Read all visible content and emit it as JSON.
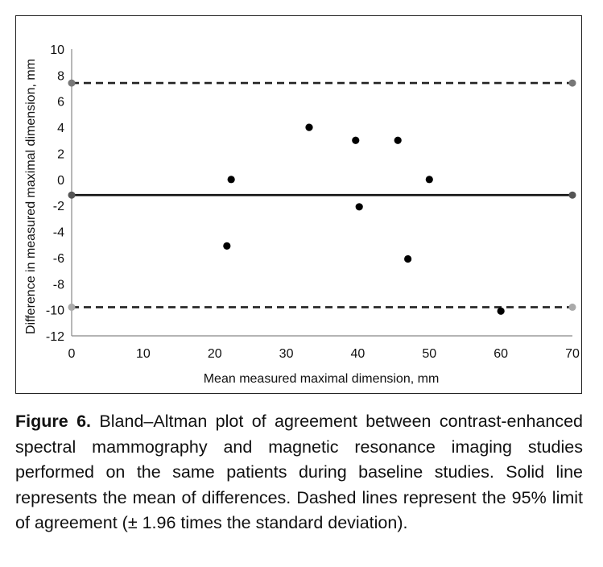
{
  "chart_data": {
    "type": "scatter",
    "title": "",
    "xlabel": "Mean measured maximal dimension, mm",
    "ylabel": "Difference in measured maximal dimension, mm",
    "xlim": [
      0,
      70
    ],
    "ylim": [
      -12,
      10
    ],
    "x_ticks": [
      0,
      10,
      20,
      30,
      40,
      50,
      60,
      70
    ],
    "y_ticks": [
      10,
      8,
      6,
      4,
      2,
      0,
      -2,
      -4,
      -6,
      -8,
      -10,
      -12
    ],
    "grid": false,
    "legend": "none",
    "series": [
      {
        "points": [
          {
            "x": 21.7,
            "y": -5.1
          },
          {
            "x": 22.3,
            "y": 0.0
          },
          {
            "x": 33.2,
            "y": 4.0
          },
          {
            "x": 39.7,
            "y": 3.0
          },
          {
            "x": 40.2,
            "y": -2.1
          },
          {
            "x": 45.6,
            "y": 3.0
          },
          {
            "x": 47.0,
            "y": -6.1
          },
          {
            "x": 50.0,
            "y": 0.0
          },
          {
            "x": 60.0,
            "y": -10.1
          }
        ],
        "color": "#000000"
      }
    ],
    "reference_lines": [
      {
        "kind": "mean",
        "style": "solid",
        "y": -1.2,
        "color": "#111111",
        "endpoint_color": "#555555"
      },
      {
        "kind": "upper-limit",
        "style": "dashed",
        "y": 7.4,
        "color": "#222222",
        "endpoint_color": "#777777"
      },
      {
        "kind": "lower-limit",
        "style": "dashed",
        "y": -9.8,
        "color": "#222222",
        "endpoint_color": "#aaaaaa"
      }
    ]
  },
  "caption": {
    "label": "Figure 6.",
    "text": " Bland–Altman plot of agreement between contrast-enhanced spectral mammography and magnetic resonance imaging studies performed on the same patients during baseline studies. Solid line represents the mean of differences. Dashed lines represent the 95% limit of agreement (± 1.96 times the standard deviation)."
  }
}
